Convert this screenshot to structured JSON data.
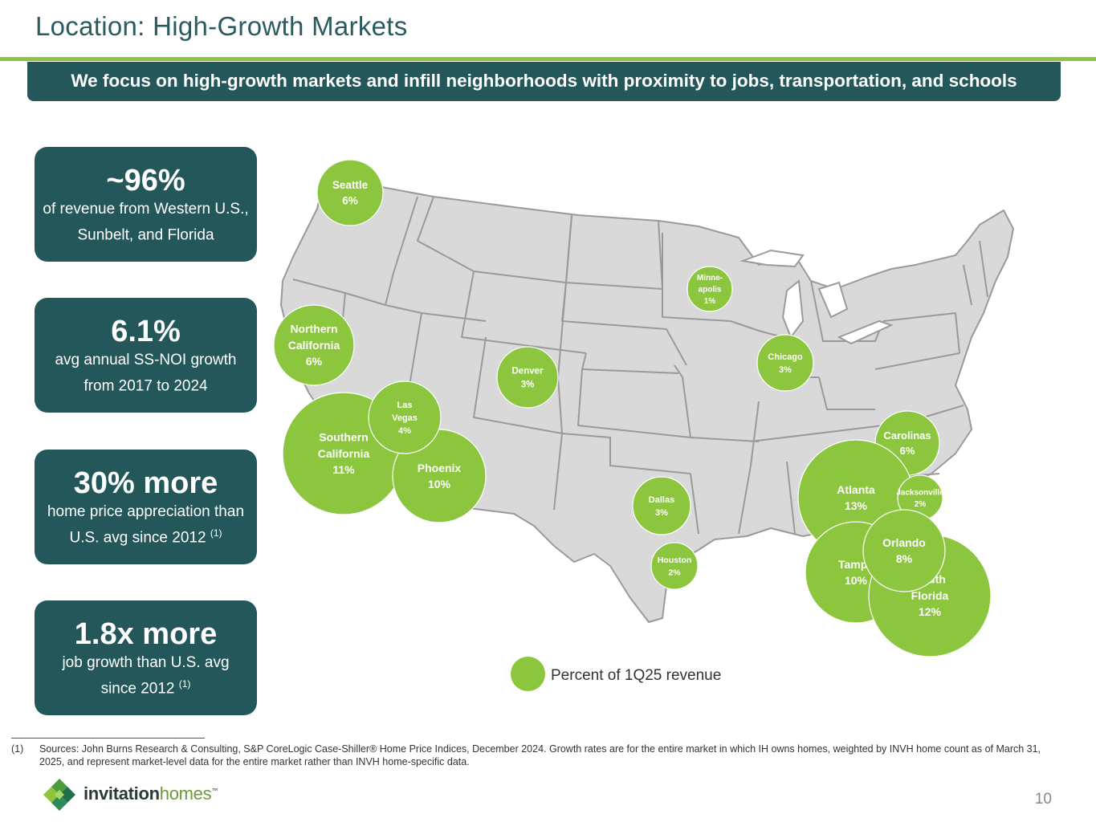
{
  "slide": {
    "title": "Location: High-Growth Markets",
    "banner": "We focus on high-growth markets and infill neighborhoods with proximity to jobs, transportation, and schools",
    "page_number": "10"
  },
  "stats": [
    {
      "big": "~96%",
      "desc": "of revenue from Western U.S., Sunbelt, and Florida",
      "sup": ""
    },
    {
      "big": "6.1%",
      "desc": "avg annual SS-NOI growth from 2017 to 2024",
      "sup": ""
    },
    {
      "big": "30% more",
      "desc": "home price appreciation than U.S. avg since 2012",
      "sup": "(1)"
    },
    {
      "big": "1.8x more",
      "desc": "job growth than U.S. avg since 2012",
      "sup": "(1)"
    }
  ],
  "colors": {
    "dark_teal": "#24575a",
    "accent_green": "#8cc63f",
    "map_fill": "#d9d9d9",
    "map_stroke": "#9a9a9a"
  },
  "legend": {
    "label": "Percent of 1Q25 revenue"
  },
  "markets": [
    {
      "name": "Seattle",
      "lines": [
        "Seattle"
      ],
      "pct": "6%",
      "value": 6
    },
    {
      "name": "Minneapolis",
      "lines": [
        "Minne-",
        "apolis"
      ],
      "pct": "1%",
      "value": 1
    },
    {
      "name": "Northern California",
      "lines": [
        "Northern",
        "California"
      ],
      "pct": "6%",
      "value": 6
    },
    {
      "name": "Chicago",
      "lines": [
        "Chicago"
      ],
      "pct": "3%",
      "value": 3
    },
    {
      "name": "Denver",
      "lines": [
        "Denver"
      ],
      "pct": "3%",
      "value": 3
    },
    {
      "name": "Southern California",
      "lines": [
        "Southern",
        "California"
      ],
      "pct": "11%",
      "value": 11
    },
    {
      "name": "Las Vegas",
      "lines": [
        "Las",
        "Vegas"
      ],
      "pct": "4%",
      "value": 4
    },
    {
      "name": "Phoenix",
      "lines": [
        "Phoenix"
      ],
      "pct": "10%",
      "value": 10
    },
    {
      "name": "Carolinas",
      "lines": [
        "Carolinas"
      ],
      "pct": "6%",
      "value": 6
    },
    {
      "name": "Dallas",
      "lines": [
        "Dallas"
      ],
      "pct": "3%",
      "value": 3
    },
    {
      "name": "Atlanta",
      "lines": [
        "Atlanta"
      ],
      "pct": "13%",
      "value": 13
    },
    {
      "name": "Jacksonville",
      "lines": [
        "Jacksonville"
      ],
      "pct": "2%",
      "value": 2
    },
    {
      "name": "Houston",
      "lines": [
        "Houston"
      ],
      "pct": "2%",
      "value": 2
    },
    {
      "name": "Tampa",
      "lines": [
        "Tampa"
      ],
      "pct": "10%",
      "value": 10
    },
    {
      "name": "South Florida",
      "lines": [
        "South",
        "Florida"
      ],
      "pct": "12%",
      "value": 12
    },
    {
      "name": "Orlando",
      "lines": [
        "Orlando"
      ],
      "pct": "8%",
      "value": 8
    }
  ],
  "footnote": {
    "num": "(1)",
    "text": "Sources: John Burns Research & Consulting, S&P CoreLogic Case-Shiller® Home Price Indices, December 2024.  Growth rates are for the entire market in which IH owns homes, weighted by INVH home count as of March 31, 2025, and represent market-level data for the entire market rather than INVH home-specific data."
  },
  "logo": {
    "word1": "invitation",
    "word2": "homes",
    "mark": "™"
  }
}
